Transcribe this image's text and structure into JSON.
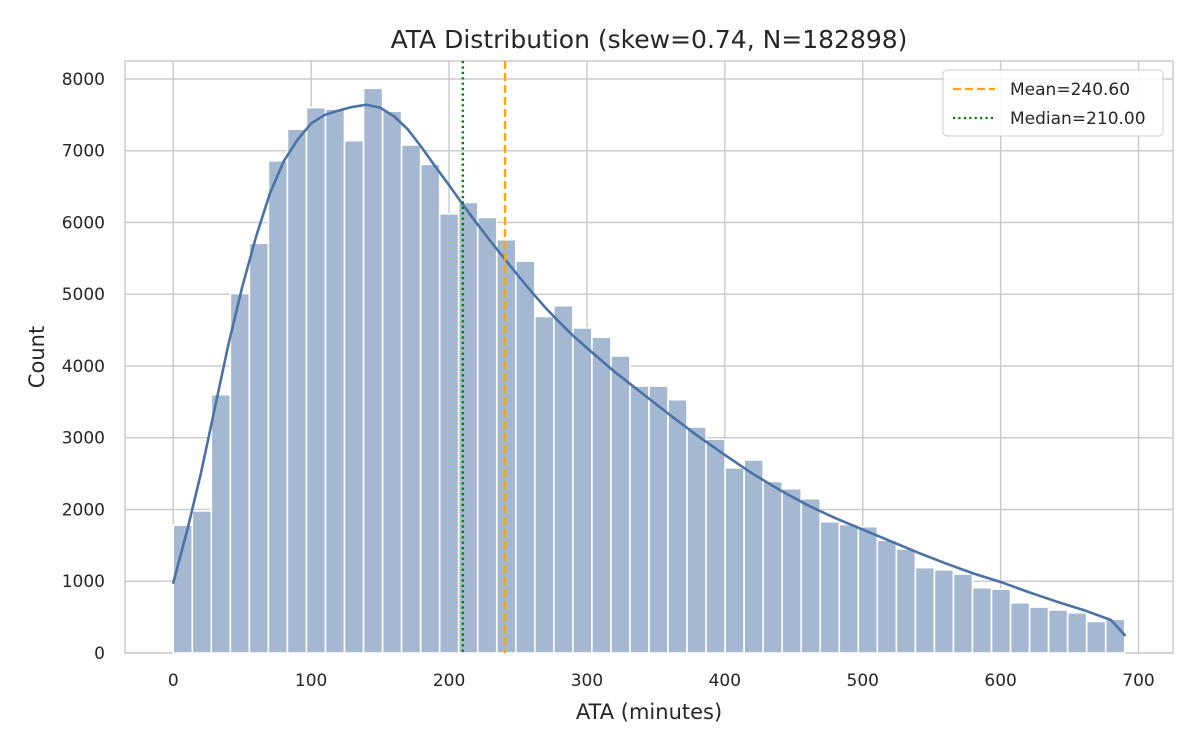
{
  "chart_data": {
    "type": "bar",
    "title": "ATA Distribution (skew=0.74, N=182898)",
    "xlabel": "ATA (minutes)",
    "ylabel": "Count",
    "xlim": [
      -35,
      725
    ],
    "ylim": [
      0,
      8250
    ],
    "x_ticks": [
      0,
      100,
      200,
      300,
      400,
      500,
      600,
      700
    ],
    "y_ticks": [
      0,
      1000,
      2000,
      3000,
      4000,
      5000,
      6000,
      7000,
      8000
    ],
    "grid": true,
    "legend_position": "top-right",
    "bin_width": 13.8,
    "bins": [
      {
        "x0": 0.0,
        "count": 1780
      },
      {
        "x0": 13.8,
        "count": 1980
      },
      {
        "x0": 27.6,
        "count": 3600
      },
      {
        "x0": 41.4,
        "count": 5010
      },
      {
        "x0": 55.2,
        "count": 5710
      },
      {
        "x0": 69.0,
        "count": 6860
      },
      {
        "x0": 82.8,
        "count": 7300
      },
      {
        "x0": 96.6,
        "count": 7600
      },
      {
        "x0": 110.4,
        "count": 7580
      },
      {
        "x0": 124.2,
        "count": 7140
      },
      {
        "x0": 138.0,
        "count": 7870
      },
      {
        "x0": 151.8,
        "count": 7550
      },
      {
        "x0": 165.6,
        "count": 7080
      },
      {
        "x0": 179.4,
        "count": 6810
      },
      {
        "x0": 193.2,
        "count": 6120
      },
      {
        "x0": 207.0,
        "count": 6280
      },
      {
        "x0": 220.8,
        "count": 6070
      },
      {
        "x0": 234.6,
        "count": 5760
      },
      {
        "x0": 248.4,
        "count": 5460
      },
      {
        "x0": 262.2,
        "count": 4690
      },
      {
        "x0": 276.0,
        "count": 4840
      },
      {
        "x0": 289.8,
        "count": 4530
      },
      {
        "x0": 303.6,
        "count": 4400
      },
      {
        "x0": 317.4,
        "count": 4140
      },
      {
        "x0": 331.2,
        "count": 3720
      },
      {
        "x0": 345.0,
        "count": 3720
      },
      {
        "x0": 358.8,
        "count": 3530
      },
      {
        "x0": 372.6,
        "count": 3150
      },
      {
        "x0": 386.4,
        "count": 2980
      },
      {
        "x0": 400.2,
        "count": 2580
      },
      {
        "x0": 414.0,
        "count": 2690
      },
      {
        "x0": 427.8,
        "count": 2390
      },
      {
        "x0": 441.6,
        "count": 2290
      },
      {
        "x0": 455.4,
        "count": 2150
      },
      {
        "x0": 469.2,
        "count": 1830
      },
      {
        "x0": 483.0,
        "count": 1790
      },
      {
        "x0": 496.8,
        "count": 1760
      },
      {
        "x0": 510.6,
        "count": 1570
      },
      {
        "x0": 524.4,
        "count": 1450
      },
      {
        "x0": 538.2,
        "count": 1190
      },
      {
        "x0": 552.0,
        "count": 1160
      },
      {
        "x0": 565.8,
        "count": 1100
      },
      {
        "x0": 579.6,
        "count": 910
      },
      {
        "x0": 593.4,
        "count": 890
      },
      {
        "x0": 607.2,
        "count": 700
      },
      {
        "x0": 621.0,
        "count": 640
      },
      {
        "x0": 634.8,
        "count": 600
      },
      {
        "x0": 648.6,
        "count": 560
      },
      {
        "x0": 662.4,
        "count": 440
      },
      {
        "x0": 676.2,
        "count": 470
      }
    ],
    "kde": {
      "x": [
        0,
        10,
        20,
        30,
        40,
        50,
        60,
        70,
        80,
        90,
        100,
        110,
        120,
        130,
        140,
        150,
        160,
        170,
        180,
        190,
        200,
        210,
        220,
        230,
        240,
        250,
        260,
        270,
        280,
        290,
        300,
        320,
        340,
        360,
        380,
        400,
        420,
        440,
        460,
        480,
        500,
        520,
        540,
        560,
        580,
        600,
        620,
        640,
        660,
        680,
        690
      ],
      "y": [
        980,
        1700,
        2500,
        3400,
        4300,
        5100,
        5800,
        6400,
        6850,
        7150,
        7380,
        7500,
        7560,
        7610,
        7640,
        7600,
        7480,
        7300,
        7050,
        6780,
        6520,
        6250,
        5990,
        5740,
        5500,
        5260,
        5030,
        4810,
        4610,
        4420,
        4250,
        3920,
        3620,
        3320,
        3030,
        2760,
        2500,
        2270,
        2060,
        1880,
        1720,
        1560,
        1400,
        1250,
        1110,
        990,
        850,
        720,
        600,
        460,
        250
      ]
    },
    "reference_lines": [
      {
        "name": "Mean=240.60",
        "value": 240.6,
        "color": "#FFA500",
        "style": "dashed"
      },
      {
        "name": "Median=210.00",
        "value": 210.0,
        "color": "#008000",
        "style": "dotted"
      }
    ],
    "bar_color": "#a5b8d2",
    "kde_color": "#4a72a6"
  }
}
